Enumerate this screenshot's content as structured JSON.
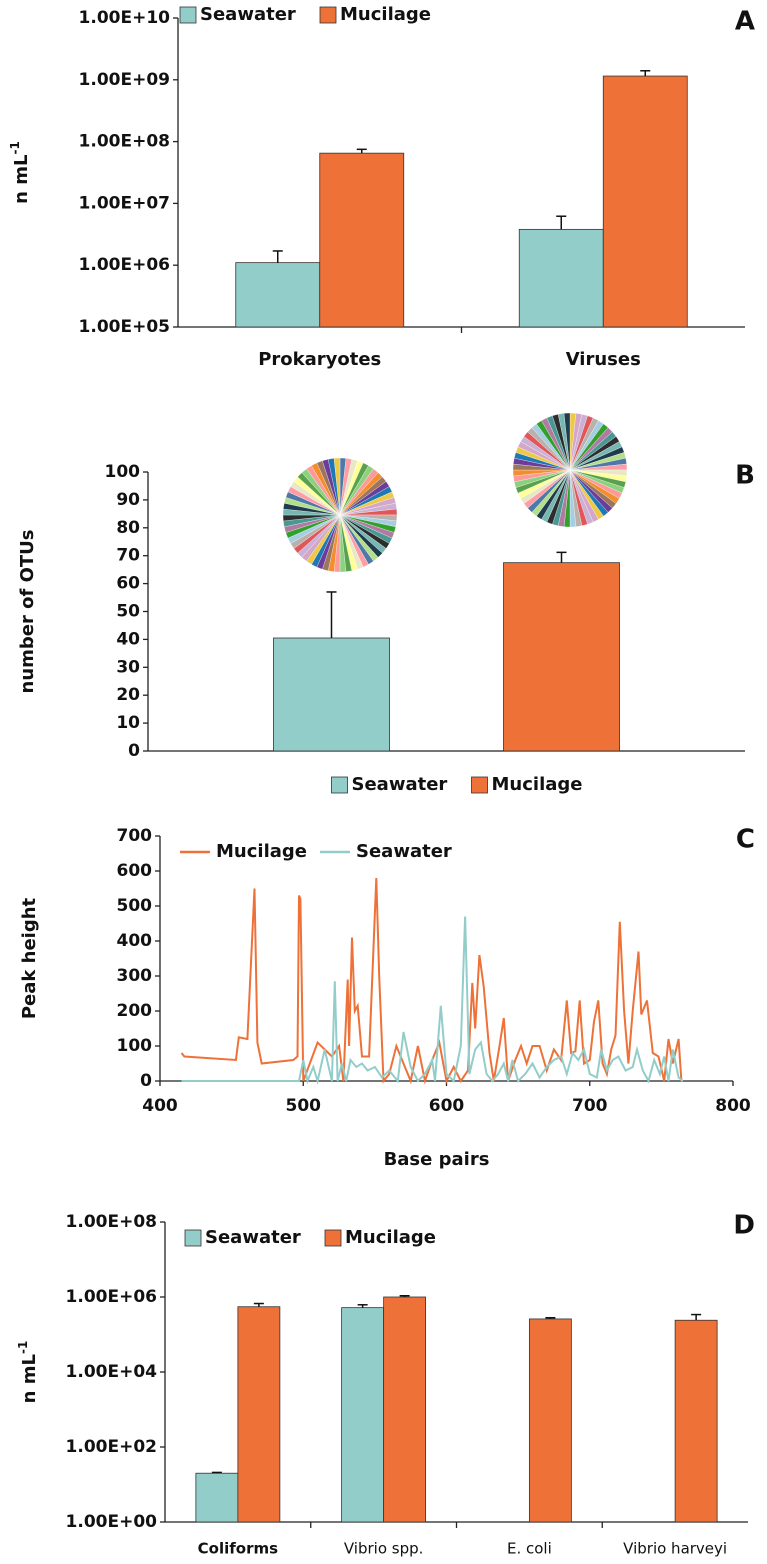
{
  "chart_data": [
    {
      "type": "bar",
      "panel_label": "A",
      "y_label": "n mL",
      "y_label_superscript": "-1",
      "log_scale": true,
      "legend": "top",
      "categories": [
        "Prokaryotes",
        "Viruses"
      ],
      "series": [
        {
          "name": "Seawater",
          "color": "#93cdca",
          "values": [
            1100000,
            3800000
          ],
          "errors": [
            600000,
            2400000
          ]
        },
        {
          "name": "Mucilage",
          "color": "#ee7138",
          "values": [
            65000000,
            1150000000
          ],
          "errors": [
            10000000,
            250000000
          ]
        }
      ],
      "ylim": [
        100000,
        10000000000
      ],
      "yticks": [
        {
          "value": 100000,
          "label": "1.00E+05"
        },
        {
          "value": 1000000,
          "label": "1.00E+06"
        },
        {
          "value": 10000000,
          "label": "1.00E+07"
        },
        {
          "value": 100000000,
          "label": "1.00E+08"
        },
        {
          "value": 1000000000,
          "label": "1.00E+09"
        },
        {
          "value": 10000000000,
          "label": "1.00E+10"
        }
      ]
    },
    {
      "type": "bar",
      "panel_label": "B",
      "y_label": "number of OTUs",
      "legend": "bottom",
      "categories": [
        null
      ],
      "series": [
        {
          "name": "Seawater",
          "color": "#93cdca",
          "values": [
            40.5
          ],
          "errors": [
            16.5
          ]
        },
        {
          "name": "Mucilage",
          "color": "#ee7138",
          "values": [
            67.5
          ],
          "errors": [
            3.7
          ]
        }
      ],
      "ylim": [
        0,
        100
      ],
      "yticks": [
        0,
        10,
        20,
        30,
        40,
        50,
        60,
        70,
        80,
        90,
        100
      ]
    },
    {
      "type": "line",
      "panel_label": "C",
      "x_label": "Base pairs",
      "y_label": "Peak height",
      "legend": "top-left",
      "xlim": [
        400,
        800
      ],
      "xticks": [
        400,
        500,
        600,
        700,
        800
      ],
      "ylim": [
        0,
        700
      ],
      "yticks": [
        0,
        100,
        200,
        300,
        400,
        500,
        600,
        700
      ],
      "series": [
        {
          "name": "Mucilage",
          "color": "#ee7138",
          "x": [
            415,
            417,
            453,
            455,
            461,
            466,
            468,
            471,
            493,
            496,
            497,
            498,
            500,
            510,
            520,
            525,
            528,
            531,
            532,
            534,
            536,
            538,
            541,
            546,
            551,
            553,
            556,
            560,
            565,
            570,
            575,
            580,
            585,
            590,
            595,
            600,
            605,
            610,
            615,
            618,
            620,
            623,
            626,
            630,
            633,
            637,
            640,
            643,
            648,
            652,
            656,
            660,
            665,
            670,
            675,
            680,
            684,
            687,
            690,
            693,
            696,
            700,
            703,
            706,
            709,
            712,
            715,
            718,
            721,
            724,
            727,
            730,
            734,
            736,
            740,
            744,
            748,
            752,
            755,
            758,
            762,
            764
          ],
          "values": [
            80,
            70,
            60,
            125,
            120,
            550,
            110,
            50,
            60,
            70,
            530,
            520,
            0,
            110,
            70,
            100,
            0,
            290,
            100,
            410,
            200,
            215,
            70,
            70,
            580,
            300,
            0,
            20,
            100,
            50,
            0,
            100,
            0,
            60,
            110,
            0,
            40,
            0,
            30,
            280,
            150,
            360,
            270,
            80,
            0,
            100,
            180,
            0,
            60,
            100,
            50,
            100,
            100,
            30,
            90,
            60,
            230,
            80,
            85,
            230,
            50,
            60,
            170,
            230,
            50,
            20,
            90,
            130,
            455,
            200,
            50,
            200,
            370,
            190,
            230,
            80,
            70,
            0,
            120,
            50,
            120,
            0
          ]
        },
        {
          "name": "Seawater",
          "color": "#93cdca",
          "x": [
            415,
            497,
            500,
            503,
            507,
            510,
            515,
            520,
            522,
            524,
            527,
            530,
            533,
            537,
            541,
            545,
            550,
            555,
            560,
            566,
            570,
            575,
            580,
            585,
            590,
            592,
            596,
            600,
            605,
            610,
            613,
            616,
            620,
            624,
            628,
            632,
            636,
            640,
            643,
            646,
            650,
            655,
            660,
            665,
            670,
            675,
            680,
            684,
            688,
            692,
            696,
            700,
            705,
            708,
            712,
            716,
            720,
            725,
            730,
            733,
            737,
            741,
            745,
            749,
            752,
            755,
            758,
            762,
            765
          ],
          "values": [
            0,
            0,
            60,
            0,
            40,
            0,
            90,
            0,
            285,
            0,
            50,
            0,
            60,
            40,
            50,
            30,
            40,
            10,
            30,
            0,
            140,
            40,
            0,
            20,
            60,
            0,
            215,
            20,
            0,
            100,
            470,
            20,
            90,
            110,
            20,
            0,
            20,
            50,
            0,
            60,
            0,
            20,
            50,
            10,
            40,
            60,
            70,
            20,
            80,
            60,
            90,
            20,
            10,
            90,
            30,
            60,
            70,
            30,
            40,
            90,
            30,
            0,
            60,
            20,
            70,
            0,
            90,
            10,
            0
          ]
        }
      ]
    },
    {
      "type": "bar",
      "panel_label": "D",
      "y_label": "n mL",
      "y_label_superscript": "-1",
      "log_scale": true,
      "legend": "top-left",
      "categories": [
        "Coliforms",
        "Vibrio spp.",
        "E. coli",
        "Vibrio harveyi"
      ],
      "series": [
        {
          "name": "Seawater",
          "color": "#93cdca",
          "values": [
            20,
            520000,
            null,
            null
          ],
          "errors": [
            1,
            100000,
            null,
            null
          ]
        },
        {
          "name": "Mucilage",
          "color": "#ee7138",
          "values": [
            550000,
            1000000,
            260000,
            240000
          ],
          "errors": [
            120000,
            80000,
            20000,
            100000
          ]
        }
      ],
      "ylim": [
        1,
        100000000
      ],
      "yticks": [
        {
          "value": 1,
          "label": "1.00E+00"
        },
        {
          "value": 100,
          "label": "1.00E+02"
        },
        {
          "value": 10000,
          "label": "1.00E+04"
        },
        {
          "value": 1000000,
          "label": "1.00E+06"
        },
        {
          "value": 100000000,
          "label": "1.00E+08"
        }
      ]
    }
  ]
}
